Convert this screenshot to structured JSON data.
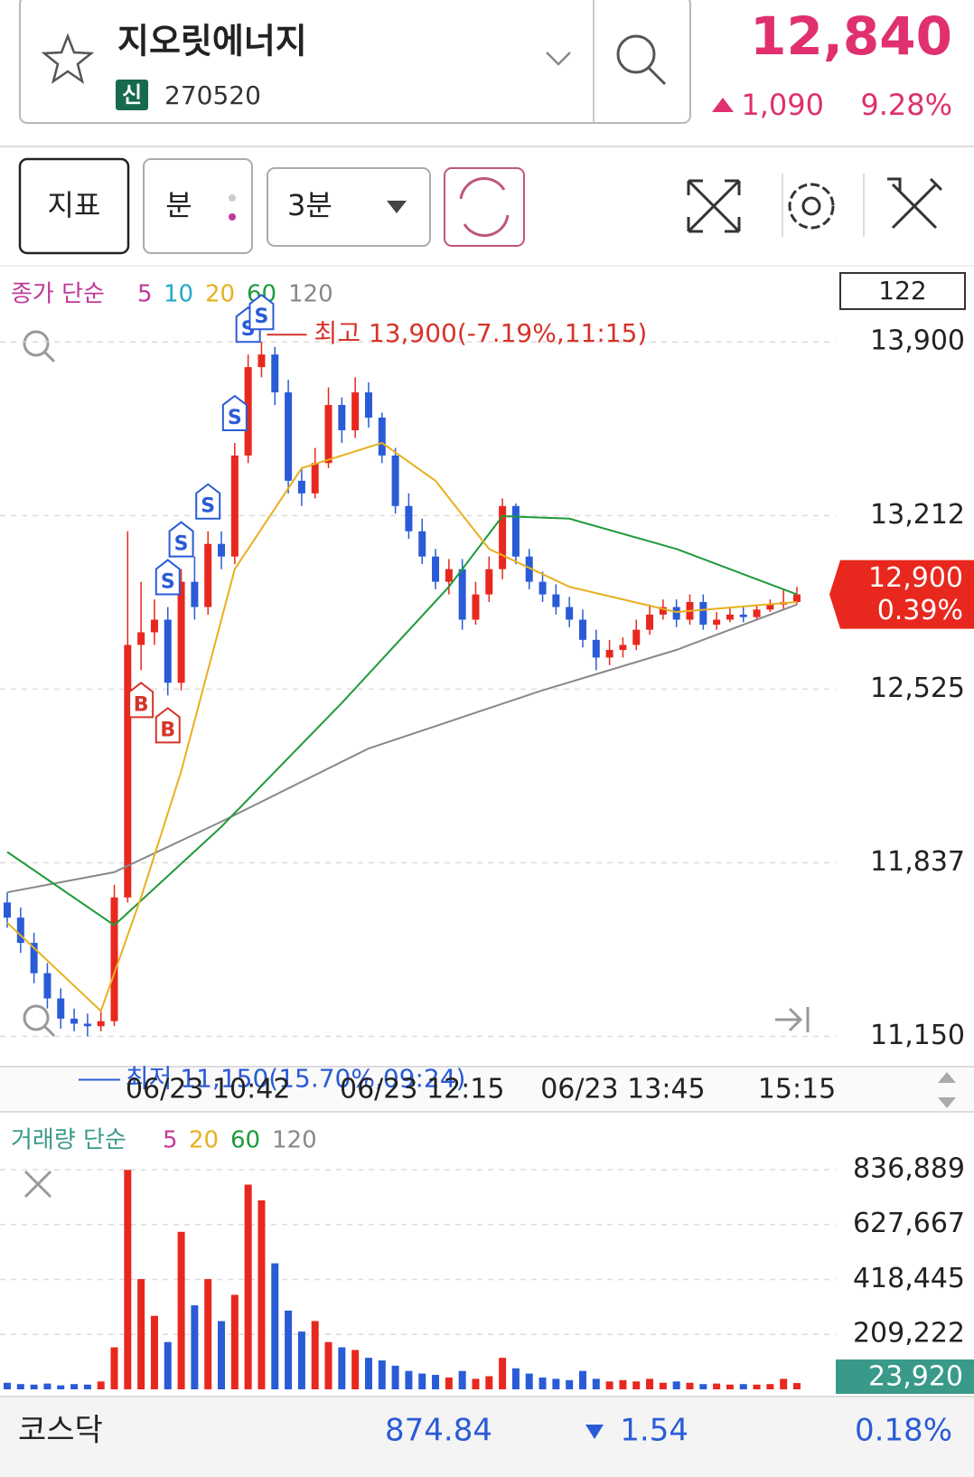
{
  "header": {
    "name": "지오릿에너지",
    "badge": "신",
    "code": "270520",
    "price": "12,840",
    "change": "1,090",
    "change_rate": "9.28%"
  },
  "toolbar": {
    "indicator": "지표",
    "unit": "분",
    "interval": "3분"
  },
  "price_chart": {
    "type": "candlestick",
    "legend": {
      "label": "종가 단순",
      "periods": [
        {
          "name": "5",
          "color": "#c0399a"
        },
        {
          "name": "10",
          "color": "#25a9c9"
        },
        {
          "name": "20",
          "color": "#e8b020"
        },
        {
          "name": "60",
          "color": "#1f9a3a"
        },
        {
          "name": "120",
          "color": "#888888"
        }
      ]
    },
    "count_box": "122",
    "ylim": [
      11030,
      14180
    ],
    "yticks": [
      {
        "value": 13900,
        "label": "13,900"
      },
      {
        "value": 13212,
        "label": "13,212"
      },
      {
        "value": 12525,
        "label": "12,525"
      },
      {
        "value": 11837,
        "label": "11,837"
      },
      {
        "value": 11150,
        "label": "11,150"
      }
    ],
    "grid": true,
    "up_color": "#e8281e",
    "down_color": "#2a5bd7",
    "open": [
      11680,
      11620,
      11520,
      11400,
      11300,
      11220,
      11200,
      11190,
      11210,
      11700,
      12700,
      12750,
      12800,
      12550,
      12950,
      12850,
      13100,
      13050,
      13450,
      13800,
      13850,
      13700,
      13350,
      13300,
      13420,
      13650,
      13550,
      13700,
      13600,
      13450,
      13250,
      13150,
      13050,
      12950,
      13000,
      12800,
      12900,
      13000,
      13250,
      13050,
      12950,
      12900,
      12850,
      12800,
      12720,
      12650,
      12680,
      12700,
      12760,
      12820,
      12850,
      12800,
      12870,
      12780,
      12800,
      12820,
      12810,
      12840,
      12860,
      12870
    ],
    "high": [
      11720,
      11660,
      11560,
      11440,
      11340,
      11260,
      11240,
      11250,
      11750,
      13150,
      12950,
      12880,
      12850,
      13000,
      13050,
      13150,
      13150,
      13500,
      13850,
      13900,
      13880,
      13750,
      13400,
      13480,
      13720,
      13680,
      13760,
      13740,
      13620,
      13480,
      13300,
      13200,
      13080,
      13040,
      13040,
      12950,
      13050,
      13280,
      13260,
      13080,
      12990,
      12940,
      12890,
      12840,
      12760,
      12720,
      12730,
      12800,
      12860,
      12880,
      12880,
      12900,
      12900,
      12830,
      12850,
      12850,
      12860,
      12880,
      12920,
      12930
    ],
    "low": [
      11580,
      11480,
      11360,
      11260,
      11180,
      11170,
      11150,
      11170,
      11190,
      11680,
      12600,
      12700,
      12500,
      12520,
      12800,
      12820,
      13000,
      13020,
      13420,
      13760,
      13650,
      13300,
      13250,
      13280,
      13400,
      13500,
      13520,
      13560,
      13420,
      13220,
      13120,
      13020,
      12920,
      12900,
      12760,
      12780,
      12870,
      12960,
      13020,
      12920,
      12870,
      12820,
      12770,
      12690,
      12600,
      12620,
      12650,
      12680,
      12740,
      12800,
      12770,
      12780,
      12760,
      12760,
      12790,
      12790,
      12800,
      12830,
      12840,
      12860
    ],
    "close": [
      11620,
      11520,
      11400,
      11300,
      11220,
      11200,
      11190,
      11210,
      11700,
      12700,
      12750,
      12800,
      12550,
      12950,
      12850,
      13100,
      13050,
      13450,
      13800,
      13850,
      13700,
      13350,
      13300,
      13420,
      13650,
      13550,
      13700,
      13600,
      13450,
      13250,
      13150,
      13050,
      12950,
      13000,
      12800,
      12900,
      13000,
      13250,
      13050,
      12950,
      12900,
      12850,
      12800,
      12720,
      12650,
      12680,
      12700,
      12760,
      12820,
      12850,
      12800,
      12870,
      12780,
      12800,
      12820,
      12810,
      12840,
      12860,
      12870,
      12900
    ],
    "lines": [
      {
        "color": "#888888",
        "x": [
          0,
          8,
          16,
          27,
          40,
          50,
          59
        ],
        "values": [
          11720,
          11800,
          12000,
          12290,
          12520,
          12680,
          12860
        ]
      },
      {
        "color": "#1f9a3a",
        "x": [
          0,
          8,
          16,
          25,
          33,
          37,
          42,
          50,
          59
        ],
        "values": [
          11880,
          11590,
          11980,
          12470,
          12930,
          13210,
          13200,
          13080,
          12900
        ]
      },
      {
        "color": "#e8b020",
        "x": [
          0,
          7,
          10,
          13,
          17,
          22,
          28,
          32,
          36,
          42,
          50,
          59
        ],
        "values": [
          11600,
          11250,
          11700,
          12200,
          13000,
          13400,
          13500,
          13350,
          13080,
          12930,
          12830,
          12870
        ]
      }
    ],
    "signals": [
      {
        "label": "B",
        "index": 10
      },
      {
        "label": "B",
        "index": 12
      },
      {
        "label": "S",
        "index": 12
      },
      {
        "label": "S",
        "index": 13
      },
      {
        "label": "S",
        "index": 15
      },
      {
        "label": "S",
        "index": 17
      },
      {
        "label": "S",
        "index": 18
      },
      {
        "label": "S",
        "index": 19
      }
    ],
    "high_note": "최고 13,900(-7.19%,11:15)",
    "low_note": "최저 11,150(15.70%,09:24)",
    "current": {
      "price": "12,900",
      "rate": "0.39%"
    },
    "xlabels": [
      {
        "index": 15,
        "label": "06/23 10:42"
      },
      {
        "index": 31,
        "label": "06/23 12:15"
      },
      {
        "index": 46,
        "label": "06/23 13:45"
      },
      {
        "index": 59,
        "label": "15:15"
      }
    ]
  },
  "volume_chart": {
    "type": "bar",
    "legend": {
      "label": "거래량 단순",
      "periods": [
        {
          "name": "5",
          "color": "#c0399a"
        },
        {
          "name": "20",
          "color": "#e8b020"
        },
        {
          "name": "60",
          "color": "#1f9a3a"
        },
        {
          "name": "120",
          "color": "#888888"
        }
      ]
    },
    "ylim": [
      0,
      1040000
    ],
    "yticks": [
      {
        "value": 836889,
        "label": "836,889"
      },
      {
        "value": 627667,
        "label": "627,667"
      },
      {
        "value": 418445,
        "label": "418,445"
      },
      {
        "value": 209222,
        "label": "209,222"
      }
    ],
    "values": [
      25000,
      20000,
      18000,
      22000,
      15000,
      20000,
      18000,
      30000,
      160000,
      836000,
      420000,
      280000,
      180000,
      600000,
      320000,
      420000,
      260000,
      360000,
      780000,
      720000,
      480000,
      300000,
      220000,
      260000,
      180000,
      160000,
      150000,
      120000,
      110000,
      90000,
      70000,
      60000,
      55000,
      45000,
      70000,
      40000,
      50000,
      120000,
      80000,
      60000,
      45000,
      40000,
      35000,
      70000,
      40000,
      30000,
      35000,
      30000,
      40000,
      25000,
      30000,
      25000,
      20000,
      22000,
      18000,
      20000,
      18000,
      20000,
      40000,
      23920
    ],
    "current": "23,920"
  },
  "footer": {
    "market": "코스닥",
    "index": "874.84",
    "change": "1.54",
    "rate": "0.18%"
  }
}
